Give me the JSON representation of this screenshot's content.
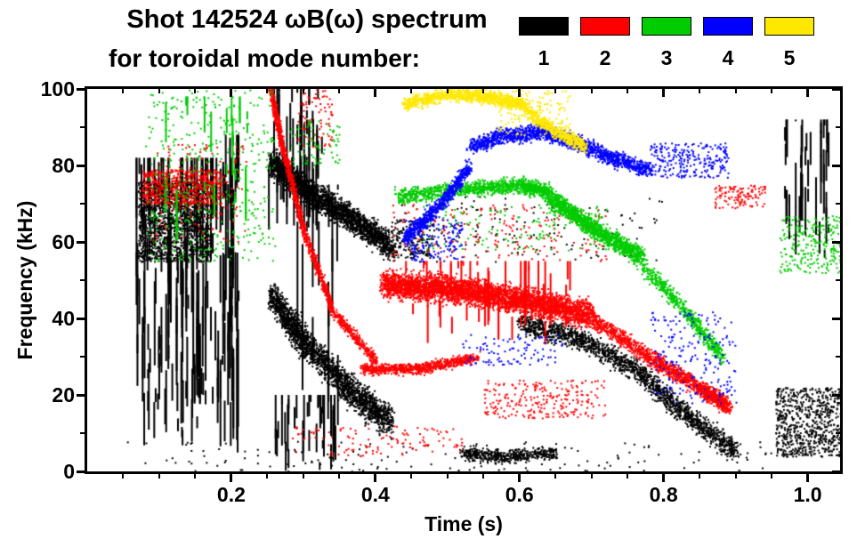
{
  "chart_data": {
    "type": "scatter",
    "subtype": "spectrogram-mode-tracks",
    "title": "Shot 142524 ωB(ω) spectrum",
    "subtitle": "for toroidal mode number:",
    "xlabel": "Time (s)",
    "ylabel": "Frequency (kHz)",
    "xlim": [
      0.0,
      1.045
    ],
    "ylim": [
      0,
      100
    ],
    "grid": false,
    "background": "#ffffff",
    "axis_color": "#000000",
    "xticks": {
      "values": [
        0.2,
        0.4,
        0.6,
        0.8,
        1.0
      ],
      "labels": [
        "0.2",
        "0.4",
        "0.6",
        "0.8",
        "1.0"
      ]
    },
    "yticks": {
      "values": [
        0,
        20,
        40,
        60,
        80,
        100
      ],
      "labels": [
        "0",
        "20",
        "40",
        "60",
        "80",
        "100"
      ]
    },
    "xminor_step": 0.05,
    "yminor_step": 10,
    "legend": {
      "position": "top-right",
      "entries": [
        {
          "label": "1",
          "color": "#000000"
        },
        {
          "label": "2",
          "color": "#ff0000"
        },
        {
          "label": "3",
          "color": "#00cc00"
        },
        {
          "label": "4",
          "color": "#0000ff"
        },
        {
          "label": "5",
          "color": "#ffe800"
        }
      ]
    },
    "modes": [
      {
        "n": 1,
        "color": "#000000",
        "tracks": [
          {
            "type": "vstreaks",
            "t0": 0.065,
            "t1": 0.205,
            "fmin": 6,
            "fmax": 82,
            "cols": 90,
            "segs": 4,
            "maxlen": 20,
            "w": 2
          },
          {
            "type": "cloud",
            "t0": 0.07,
            "t1": 0.17,
            "fmin": 55,
            "fmax": 76,
            "n": 1500
          },
          {
            "type": "vstreaks",
            "t0": 0.19,
            "t1": 0.21,
            "fmin": 0,
            "fmax": 88,
            "cols": 10,
            "segs": 3,
            "maxlen": 35,
            "w": 2
          },
          {
            "type": "vstreaks",
            "t0": 0.25,
            "t1": 0.325,
            "fmin": 62,
            "fmax": 100,
            "cols": 35,
            "segs": 3,
            "maxlen": 15,
            "w": 2
          },
          {
            "type": "track",
            "t": [
              0.255,
              0.3,
              0.36,
              0.42
            ],
            "f": [
              81,
              74,
              67,
              59
            ],
            "spread": 5,
            "n": 2500,
            "jt": 0.012
          },
          {
            "type": "track",
            "t": [
              0.255,
              0.3,
              0.36,
              0.42
            ],
            "f": [
              46,
              34,
              22,
              13
            ],
            "spread": 6,
            "n": 2200,
            "jt": 0.012
          },
          {
            "type": "vstreaks",
            "t0": 0.26,
            "t1": 0.35,
            "fmin": 0,
            "fmax": 20,
            "cols": 30,
            "segs": 2,
            "maxlen": 12,
            "w": 2
          },
          {
            "type": "vstreaks",
            "t0": 0.29,
            "t1": 0.35,
            "fmin": 10,
            "fmax": 75,
            "cols": 12,
            "segs": 2,
            "maxlen": 30,
            "w": 2
          },
          {
            "type": "cloud",
            "t0": 0.42,
            "t1": 0.48,
            "fmin": 56,
            "fmax": 66,
            "n": 200
          },
          {
            "type": "track",
            "t": [
              0.52,
              0.58,
              0.65
            ],
            "f": [
              5,
              4,
              5
            ],
            "spread": 2.5,
            "n": 500,
            "jt": 0.01
          },
          {
            "type": "track",
            "t": [
              0.6,
              0.68,
              0.76,
              0.83,
              0.9
            ],
            "f": [
              39,
              35,
              27,
              15,
              5
            ],
            "spread": 4,
            "n": 1800,
            "jt": 0.012
          },
          {
            "type": "cloud",
            "t0": 0.955,
            "t1": 1.045,
            "fmin": 4,
            "fmax": 22,
            "n": 700
          },
          {
            "type": "vstreaks",
            "t0": 0.96,
            "t1": 1.03,
            "fmin": 55,
            "fmax": 92,
            "cols": 25,
            "segs": 3,
            "maxlen": 12,
            "w": 2
          },
          {
            "type": "cloud",
            "t0": 0.43,
            "t1": 0.8,
            "fmin": 55,
            "fmax": 72,
            "n": 150
          },
          {
            "type": "cloud",
            "t0": 0.05,
            "t1": 0.95,
            "fmin": 0,
            "fmax": 8,
            "n": 150
          }
        ]
      },
      {
        "n": 2,
        "color": "#ff0000",
        "tracks": [
          {
            "type": "cloud",
            "t0": 0.075,
            "t1": 0.185,
            "fmin": 70,
            "fmax": 79,
            "n": 600
          },
          {
            "type": "cloud",
            "t0": 0.09,
            "t1": 0.22,
            "fmin": 60,
            "fmax": 86,
            "n": 150
          },
          {
            "type": "track",
            "t": [
              0.253,
              0.27,
              0.3,
              0.34,
              0.4
            ],
            "f": [
              101,
              85,
              63,
              42,
              29
            ],
            "spread": 2.5,
            "n": 1400,
            "jt": 0.006
          },
          {
            "type": "cloud",
            "t0": 0.29,
            "t1": 0.34,
            "fmin": 85,
            "fmax": 100,
            "n": 80
          },
          {
            "type": "track",
            "t": [
              0.38,
              0.46,
              0.54
            ],
            "f": [
              27,
              27,
              30
            ],
            "spread": 2,
            "n": 800,
            "jt": 0.01
          },
          {
            "type": "track",
            "t": [
              0.41,
              0.5,
              0.6,
              0.7
            ],
            "f": [
              49,
              48,
              45,
              41
            ],
            "spread": 5,
            "n": 4000,
            "jt": 0.012
          },
          {
            "type": "vstreaks",
            "t0": 0.44,
            "t1": 0.67,
            "fmin": 33,
            "fmax": 55,
            "cols": 40,
            "segs": 2,
            "maxlen": 14,
            "w": 2
          },
          {
            "type": "track",
            "t": [
              0.7,
              0.78,
              0.85,
              0.89
            ],
            "f": [
              40,
              30,
              22,
              17
            ],
            "spread": 3,
            "n": 1500,
            "jt": 0.01
          },
          {
            "type": "cloud",
            "t0": 0.55,
            "t1": 0.72,
            "fmin": 14,
            "fmax": 24,
            "n": 250
          },
          {
            "type": "cloud",
            "t0": 0.87,
            "t1": 0.94,
            "fmin": 69,
            "fmax": 75,
            "n": 120
          },
          {
            "type": "cloud",
            "t0": 0.28,
            "t1": 0.52,
            "fmin": 4,
            "fmax": 12,
            "n": 120
          },
          {
            "type": "cloud",
            "t0": 0.42,
            "t1": 0.72,
            "fmin": 55,
            "fmax": 70,
            "n": 200
          }
        ]
      },
      {
        "n": 3,
        "color": "#00cc00",
        "tracks": [
          {
            "type": "cloud",
            "t0": 0.08,
            "t1": 0.26,
            "fmin": 55,
            "fmax": 100,
            "n": 450
          },
          {
            "type": "vstreaks",
            "t0": 0.1,
            "t1": 0.25,
            "fmin": 60,
            "fmax": 98,
            "cols": 15,
            "segs": 2,
            "maxlen": 12,
            "w": 2
          },
          {
            "type": "track",
            "t": [
              0.43,
              0.52,
              0.6,
              0.64
            ],
            "f": [
              72,
              74,
              75,
              73
            ],
            "spread": 3,
            "n": 1200,
            "jt": 0.012
          },
          {
            "type": "track",
            "t": [
              0.64,
              0.7,
              0.77
            ],
            "f": [
              72,
              64,
              56
            ],
            "spread": 3.5,
            "n": 1400,
            "jt": 0.01
          },
          {
            "type": "track",
            "t": [
              0.77,
              0.83,
              0.88
            ],
            "f": [
              54,
              42,
              30
            ],
            "spread": 3,
            "n": 600,
            "jt": 0.01
          },
          {
            "type": "cloud",
            "t0": 0.96,
            "t1": 1.045,
            "fmin": 52,
            "fmax": 67,
            "n": 250
          },
          {
            "type": "cloud",
            "t0": 0.46,
            "t1": 0.72,
            "fmin": 58,
            "fmax": 70,
            "n": 150
          },
          {
            "type": "cloud",
            "t0": 0.28,
            "t1": 0.35,
            "fmin": 80,
            "fmax": 92,
            "n": 80
          }
        ]
      },
      {
        "n": 4,
        "color": "#0000ff",
        "tracks": [
          {
            "type": "track",
            "t": [
              0.44,
              0.49,
              0.53
            ],
            "f": [
              61,
              70,
              80
            ],
            "spread": 3,
            "n": 700,
            "jt": 0.008
          },
          {
            "type": "track",
            "t": [
              0.53,
              0.58,
              0.63,
              0.68,
              0.73,
              0.78
            ],
            "f": [
              85,
              88,
              89,
              86,
              82,
              79
            ],
            "spread": 3,
            "n": 1600,
            "jt": 0.01
          },
          {
            "type": "cloud",
            "t0": 0.78,
            "t1": 0.89,
            "fmin": 77,
            "fmax": 86,
            "n": 250
          },
          {
            "type": "cloud",
            "t0": 0.78,
            "t1": 0.9,
            "fmin": 18,
            "fmax": 42,
            "n": 200
          },
          {
            "type": "cloud",
            "t0": 0.52,
            "t1": 0.66,
            "fmin": 28,
            "fmax": 36,
            "n": 100
          },
          {
            "type": "cloud",
            "t0": 0.44,
            "t1": 0.52,
            "fmin": 55,
            "fmax": 66,
            "n": 150
          }
        ]
      },
      {
        "n": 5,
        "color": "#ffe800",
        "tracks": [
          {
            "type": "track",
            "t": [
              0.44,
              0.5,
              0.56,
              0.61
            ],
            "f": [
              96,
              99,
              98,
              96
            ],
            "spread": 2.5,
            "n": 1100,
            "jt": 0.01
          },
          {
            "type": "track",
            "t": [
              0.61,
              0.65,
              0.69
            ],
            "f": [
              94,
              89,
              85
            ],
            "spread": 2.5,
            "n": 500,
            "jt": 0.008
          },
          {
            "type": "cloud",
            "t0": 0.57,
            "t1": 0.67,
            "fmin": 88,
            "fmax": 100,
            "n": 150
          }
        ]
      }
    ]
  }
}
